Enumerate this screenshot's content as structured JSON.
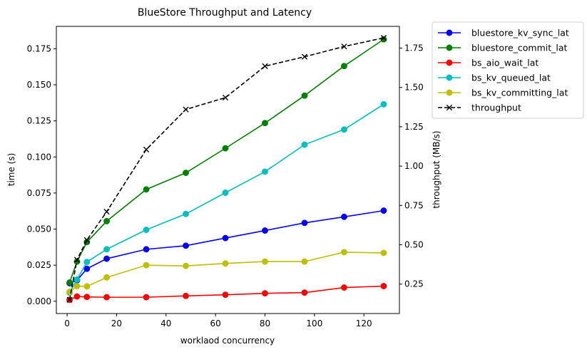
{
  "chart_data": {
    "type": "line",
    "title": "BlueStore Throughput and Latency",
    "xlabel": "worklaod concurrency",
    "ylabel": "time (s)",
    "y2label": "throughput (MB/s)",
    "xlim": [
      -4.35,
      134.35
    ],
    "ylim": [
      -0.0085,
      0.1905
    ],
    "y2lim": [
      0.063,
      1.888
    ],
    "x": [
      1,
      4,
      8,
      16,
      32,
      48,
      64,
      80,
      96,
      112,
      128
    ],
    "x_ticks": [
      "0",
      "20",
      "40",
      "60",
      "80",
      "100",
      "120"
    ],
    "x_tick_values": [
      0,
      20,
      40,
      60,
      80,
      100,
      120
    ],
    "y_ticks": [
      "0.000",
      "0.025",
      "0.050",
      "0.075",
      "0.100",
      "0.125",
      "0.150",
      "0.175"
    ],
    "y_tick_values": [
      0,
      0.025,
      0.05,
      0.075,
      0.1,
      0.125,
      0.15,
      0.175
    ],
    "y2_ticks": [
      "0.25",
      "0.50",
      "0.75",
      "1.00",
      "1.25",
      "1.50",
      "1.75"
    ],
    "y2_tick_values": [
      0.25,
      0.5,
      0.75,
      1.0,
      1.25,
      1.5,
      1.75
    ],
    "legend_position": "outside-top-right",
    "grid": false,
    "series": [
      {
        "name": "bluestore_kv_sync_lat",
        "axis": "left",
        "color": "#0000ff",
        "marker": "circle",
        "dash": "solid",
        "values": [
          0.0125,
          0.0145,
          0.0225,
          0.0295,
          0.036,
          0.0385,
          0.0438,
          0.049,
          0.0543,
          0.0585,
          0.0628
        ]
      },
      {
        "name": "bluestore_commit_lat",
        "axis": "left",
        "color": "#008000",
        "marker": "circle",
        "dash": "solid",
        "values": [
          0.013,
          0.0275,
          0.041,
          0.0555,
          0.0775,
          0.089,
          0.106,
          0.1235,
          0.1425,
          0.163,
          0.1815
        ]
      },
      {
        "name": "bs_aio_wait_lat",
        "axis": "left",
        "color": "#ff0000",
        "marker": "circle",
        "dash": "solid",
        "values": [
          0.001,
          0.0033,
          0.003,
          0.0028,
          0.0028,
          0.0037,
          0.0045,
          0.0055,
          0.006,
          0.0095,
          0.0105
        ]
      },
      {
        "name": "bs_kv_queued_lat",
        "axis": "left",
        "color": "#00bfbf",
        "marker": "circle",
        "dash": "solid",
        "values": [
          0.006,
          0.015,
          0.0272,
          0.036,
          0.0495,
          0.0605,
          0.0752,
          0.0898,
          0.1085,
          0.119,
          0.1365
        ]
      },
      {
        "name": "bs_kv_committing_lat",
        "axis": "left",
        "color": "#bfbf00",
        "marker": "circle",
        "dash": "solid",
        "values": [
          0.0065,
          0.0105,
          0.0103,
          0.0165,
          0.025,
          0.0245,
          0.0262,
          0.0275,
          0.0275,
          0.034,
          0.0335
        ]
      },
      {
        "name": "throughput",
        "axis": "right",
        "color": "#000000",
        "marker": "x",
        "dash": "dashed",
        "values": [
          0.15,
          0.405,
          0.53,
          0.71,
          1.105,
          1.36,
          1.435,
          1.635,
          1.695,
          1.76,
          1.815
        ]
      }
    ]
  }
}
